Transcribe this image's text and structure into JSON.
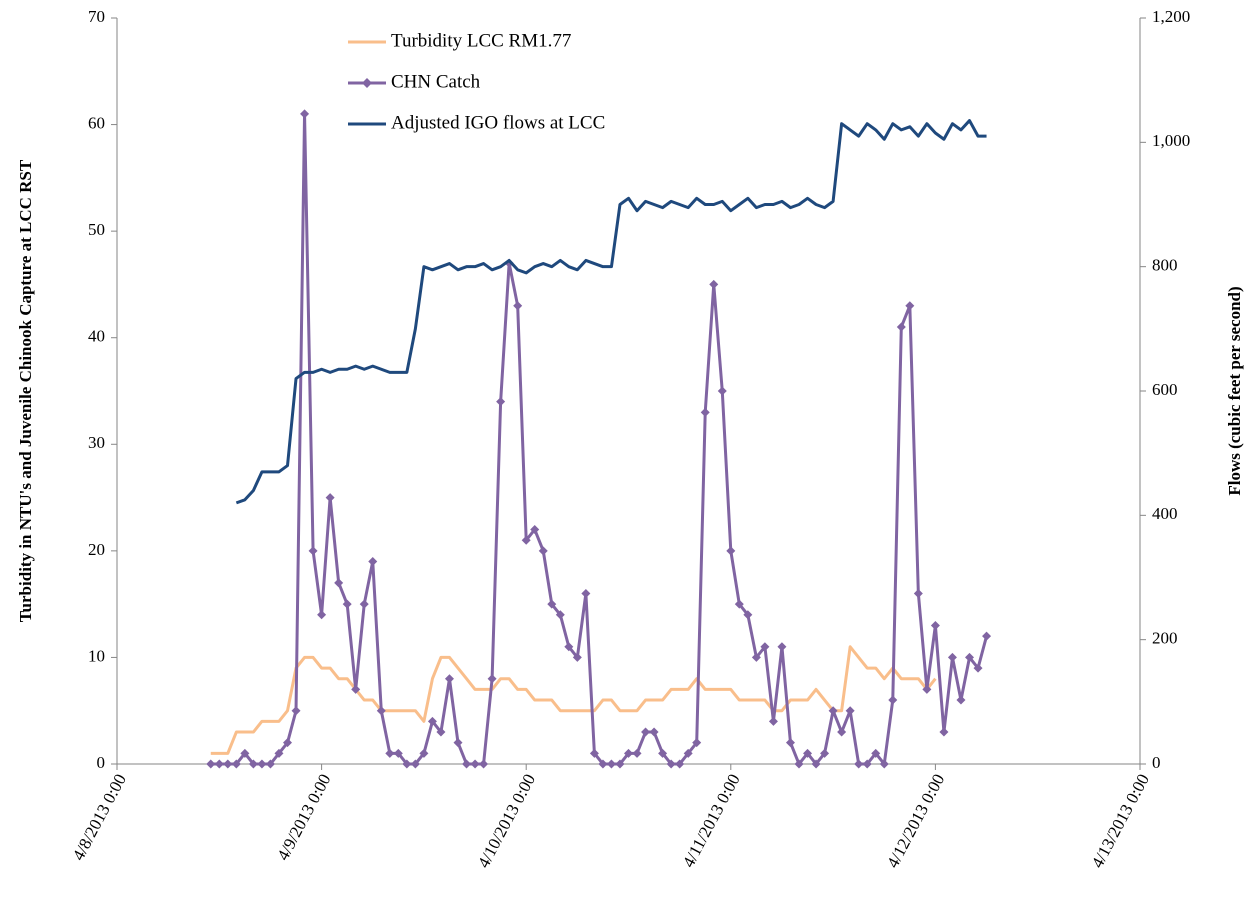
{
  "chart_data": {
    "type": "line",
    "y_label": "Turbidity in NTU's and Juvenile Chinook Capture at LCC RST",
    "y2_label": "Flows (cubic feet per second)",
    "legend": "upper left",
    "grid": false,
    "xlim": [
      "4/8/2013 0:00",
      "4/13/2013 0:00"
    ],
    "xticks": [
      "4/8/2013 0:00",
      "4/9/2013 0:00",
      "4/10/2013 0:00",
      "4/11/2013 0:00",
      "4/12/2013 0:00",
      "4/13/2013 0:00"
    ],
    "ylim": [
      0,
      70
    ],
    "yticks": [
      0,
      10,
      20,
      30,
      40,
      50,
      60,
      70
    ],
    "y2lim": [
      0,
      1200
    ],
    "y2ticks": [
      0,
      200,
      400,
      600,
      800,
      {
        "value": 1000,
        "label": "1,000"
      },
      {
        "value": 1200,
        "label": "1,200"
      }
    ],
    "x": [
      "4/8/2013 11:00",
      "4/8/2013 12:00",
      "4/8/2013 13:00",
      "4/8/2013 14:00",
      "4/8/2013 15:00",
      "4/8/2013 16:00",
      "4/8/2013 17:00",
      "4/8/2013 18:00",
      "4/8/2013 19:00",
      "4/8/2013 20:00",
      "4/8/2013 21:00",
      "4/8/2013 22:00",
      "4/8/2013 23:00",
      "4/9/2013 0:00",
      "4/9/2013 1:00",
      "4/9/2013 2:00",
      "4/9/2013 3:00",
      "4/9/2013 4:00",
      "4/9/2013 5:00",
      "4/9/2013 6:00",
      "4/9/2013 7:00",
      "4/9/2013 8:00",
      "4/9/2013 9:00",
      "4/9/2013 10:00",
      "4/9/2013 11:00",
      "4/9/2013 12:00",
      "4/9/2013 13:00",
      "4/9/2013 14:00",
      "4/9/2013 15:00",
      "4/9/2013 16:00",
      "4/9/2013 17:00",
      "4/9/2013 18:00",
      "4/9/2013 19:00",
      "4/9/2013 20:00",
      "4/9/2013 21:00",
      "4/9/2013 22:00",
      "4/9/2013 23:00",
      "4/10/2013 0:00",
      "4/10/2013 1:00",
      "4/10/2013 2:00",
      "4/10/2013 3:00",
      "4/10/2013 4:00",
      "4/10/2013 5:00",
      "4/10/2013 6:00",
      "4/10/2013 7:00",
      "4/10/2013 8:00",
      "4/10/2013 9:00",
      "4/10/2013 10:00",
      "4/10/2013 11:00",
      "4/10/2013 12:00",
      "4/10/2013 13:00",
      "4/10/2013 14:00",
      "4/10/2013 15:00",
      "4/10/2013 16:00",
      "4/10/2013 17:00",
      "4/10/2013 18:00",
      "4/10/2013 19:00",
      "4/10/2013 20:00",
      "4/10/2013 21:00",
      "4/10/2013 22:00",
      "4/10/2013 23:00",
      "4/11/2013 0:00",
      "4/11/2013 1:00",
      "4/11/2013 2:00",
      "4/11/2013 3:00",
      "4/11/2013 4:00",
      "4/11/2013 5:00",
      "4/11/2013 6:00",
      "4/11/2013 7:00",
      "4/11/2013 8:00",
      "4/11/2013 9:00",
      "4/11/2013 10:00",
      "4/11/2013 11:00",
      "4/11/2013 12:00",
      "4/11/2013 13:00",
      "4/11/2013 14:00",
      "4/11/2013 15:00",
      "4/11/2013 16:00",
      "4/11/2013 17:00",
      "4/11/2013 18:00",
      "4/11/2013 19:00",
      "4/11/2013 20:00",
      "4/11/2013 21:00",
      "4/11/2013 22:00",
      "4/11/2013 23:00",
      "4/12/2013 0:00",
      "4/12/2013 1:00",
      "4/12/2013 2:00",
      "4/12/2013 3:00",
      "4/12/2013 4:00",
      "4/12/2013 5:00",
      "4/12/2013 6:00"
    ],
    "series": [
      {
        "name": "Turbidity LCC RM1.77",
        "color": "#f9be8b",
        "values": [
          1,
          1,
          1,
          3,
          3,
          3,
          4,
          4,
          4,
          5,
          9,
          10,
          10,
          9,
          9,
          8,
          8,
          7,
          6,
          6,
          5,
          5,
          5,
          5,
          5,
          4,
          8,
          10,
          10,
          9,
          8,
          7,
          7,
          7,
          8,
          8,
          7,
          7,
          6,
          6,
          6,
          5,
          5,
          5,
          5,
          5,
          6,
          6,
          5,
          5,
          5,
          6,
          6,
          6,
          7,
          7,
          7,
          8,
          7,
          7,
          7,
          7,
          6,
          6,
          6,
          6,
          5,
          5,
          6,
          6,
          6,
          7,
          6,
          5,
          5,
          11,
          10,
          9,
          9,
          8,
          9,
          8,
          8,
          8,
          7,
          8,
          null,
          null,
          null,
          null,
          null,
          null
        ]
      },
      {
        "name": "CHN Catch",
        "color": "#8064a2",
        "marker": "diamond",
        "values": [
          0,
          0,
          0,
          0,
          1,
          0,
          0,
          0,
          1,
          2,
          5,
          61,
          20,
          14,
          25,
          17,
          15,
          7,
          15,
          19,
          5,
          1,
          1,
          0,
          0,
          1,
          4,
          3,
          8,
          2,
          0,
          0,
          0,
          8,
          34,
          47,
          43,
          21,
          22,
          20,
          15,
          14,
          11,
          10,
          16,
          1,
          0,
          0,
          0,
          1,
          1,
          3,
          3,
          1,
          0,
          0,
          1,
          2,
          33,
          45,
          35,
          20,
          15,
          14,
          10,
          11,
          4,
          11,
          2,
          0,
          1,
          0,
          1,
          5,
          3,
          5,
          0,
          0,
          1,
          0,
          6,
          41,
          43,
          16,
          7,
          13,
          3,
          10,
          6,
          10,
          9,
          12
        ]
      },
      {
        "name": "Adjusted IGO flows at LCC",
        "color": "#1f497d",
        "axis": "y2",
        "values": [
          null,
          null,
          null,
          420,
          425,
          440,
          470,
          470,
          470,
          480,
          620,
          630,
          630,
          635,
          630,
          635,
          635,
          640,
          635,
          640,
          635,
          630,
          630,
          630,
          700,
          800,
          795,
          800,
          805,
          795,
          800,
          800,
          805,
          795,
          800,
          810,
          795,
          790,
          800,
          805,
          800,
          810,
          800,
          795,
          810,
          805,
          800,
          800,
          900,
          910,
          890,
          905,
          900,
          895,
          905,
          900,
          895,
          910,
          900,
          900,
          905,
          890,
          900,
          910,
          895,
          900,
          900,
          905,
          895,
          900,
          910,
          900,
          895,
          905,
          1030,
          1020,
          1010,
          1030,
          1020,
          1005,
          1030,
          1020,
          1025,
          1010,
          1030,
          1015,
          1005,
          1030,
          1020,
          1035,
          1010,
          1010
        ]
      }
    ]
  }
}
